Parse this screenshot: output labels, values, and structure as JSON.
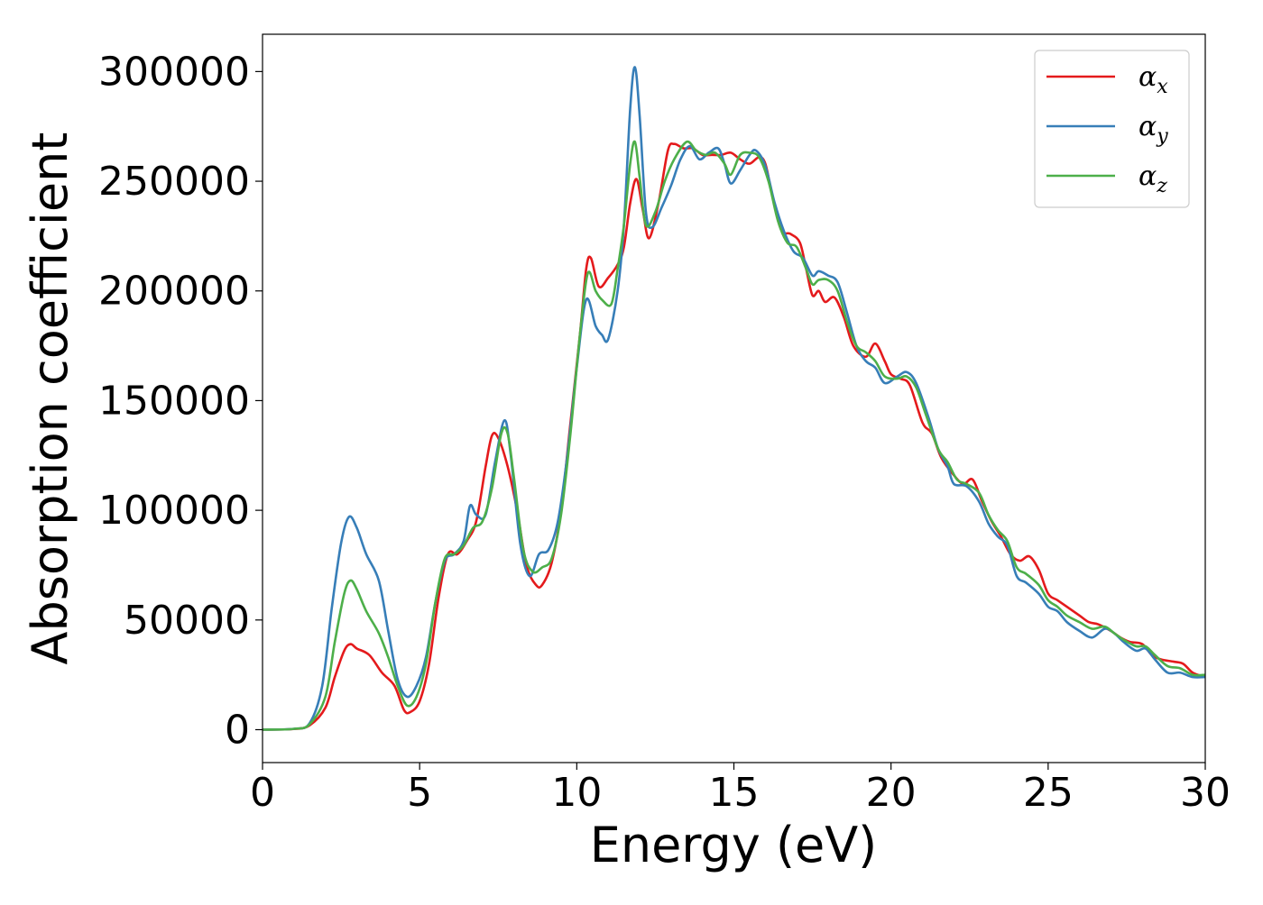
{
  "chart_data": {
    "type": "line",
    "title": "",
    "xlabel": "Energy (eV)",
    "ylabel": "Absorption coefficient",
    "xlim": [
      0,
      30
    ],
    "ylim": [
      -15000,
      317000
    ],
    "xticks": [
      "0",
      "5",
      "10",
      "15",
      "20",
      "25",
      "30"
    ],
    "xtick_values": [
      0,
      5,
      10,
      15,
      20,
      25,
      30
    ],
    "yticks": [
      "0",
      "50000",
      "100000",
      "150000",
      "200000",
      "250000",
      "300000"
    ],
    "ytick_values": [
      0,
      50000,
      100000,
      150000,
      200000,
      250000,
      300000
    ],
    "grid": false,
    "legend_placement": "upper right",
    "series": [
      {
        "name": "α_x",
        "color": "#e41a1c",
        "points": [
          [
            0,
            0
          ],
          [
            1,
            300
          ],
          [
            1.5,
            2000
          ],
          [
            2,
            10000
          ],
          [
            2.3,
            24000
          ],
          [
            2.6,
            36000
          ],
          [
            2.8,
            39000
          ],
          [
            3,
            37000
          ],
          [
            3.4,
            34000
          ],
          [
            3.8,
            26000
          ],
          [
            4.2,
            20000
          ],
          [
            4.5,
            9000
          ],
          [
            4.7,
            8000
          ],
          [
            5,
            13000
          ],
          [
            5.3,
            30000
          ],
          [
            5.6,
            60000
          ],
          [
            5.9,
            80000
          ],
          [
            6.2,
            80000
          ],
          [
            6.5,
            86000
          ],
          [
            6.8,
            95000
          ],
          [
            7.1,
            120000
          ],
          [
            7.3,
            134000
          ],
          [
            7.5,
            133000
          ],
          [
            7.8,
            120000
          ],
          [
            8.1,
            100000
          ],
          [
            8.4,
            75000
          ],
          [
            8.7,
            66000
          ],
          [
            8.9,
            66000
          ],
          [
            9.2,
            76000
          ],
          [
            9.5,
            100000
          ],
          [
            9.8,
            140000
          ],
          [
            10.1,
            180000
          ],
          [
            10.3,
            210000
          ],
          [
            10.45,
            215000
          ],
          [
            10.7,
            202000
          ],
          [
            11,
            206000
          ],
          [
            11.3,
            212000
          ],
          [
            11.5,
            220000
          ],
          [
            11.7,
            240000
          ],
          [
            11.9,
            251000
          ],
          [
            12.1,
            237000
          ],
          [
            12.3,
            224000
          ],
          [
            12.6,
            240000
          ],
          [
            12.9,
            264000
          ],
          [
            13.1,
            267000
          ],
          [
            13.4,
            265000
          ],
          [
            13.7,
            265000
          ],
          [
            14,
            262000
          ],
          [
            14.3,
            262000
          ],
          [
            14.6,
            262000
          ],
          [
            14.9,
            263000
          ],
          [
            15.2,
            260000
          ],
          [
            15.5,
            258000
          ],
          [
            15.8,
            261000
          ],
          [
            16,
            258000
          ],
          [
            16.2,
            245000
          ],
          [
            16.5,
            228000
          ],
          [
            16.8,
            226000
          ],
          [
            17.1,
            222000
          ],
          [
            17.3,
            210000
          ],
          [
            17.5,
            198000
          ],
          [
            17.7,
            200000
          ],
          [
            17.9,
            195000
          ],
          [
            18.2,
            197000
          ],
          [
            18.5,
            188000
          ],
          [
            18.8,
            175000
          ],
          [
            19.2,
            170000
          ],
          [
            19.5,
            176000
          ],
          [
            19.8,
            168000
          ],
          [
            20,
            162000
          ],
          [
            20.3,
            160000
          ],
          [
            20.6,
            157000
          ],
          [
            21,
            140000
          ],
          [
            21.3,
            135000
          ],
          [
            21.6,
            124000
          ],
          [
            22,
            116000
          ],
          [
            22.3,
            112000
          ],
          [
            22.6,
            114000
          ],
          [
            22.9,
            104000
          ],
          [
            23.2,
            95000
          ],
          [
            23.5,
            88000
          ],
          [
            23.8,
            80000
          ],
          [
            24.1,
            77000
          ],
          [
            24.4,
            79000
          ],
          [
            24.7,
            73000
          ],
          [
            25,
            62000
          ],
          [
            25.3,
            59000
          ],
          [
            25.6,
            56000
          ],
          [
            26,
            52000
          ],
          [
            26.3,
            49000
          ],
          [
            26.6,
            48000
          ],
          [
            27,
            45000
          ],
          [
            27.3,
            42000
          ],
          [
            27.6,
            40000
          ],
          [
            28,
            39000
          ],
          [
            28.3,
            34000
          ],
          [
            28.6,
            32000
          ],
          [
            29,
            31000
          ],
          [
            29.3,
            30000
          ],
          [
            29.6,
            26000
          ],
          [
            30,
            24000
          ]
        ]
      },
      {
        "name": "α_y",
        "color": "#377eb8",
        "points": [
          [
            0,
            0
          ],
          [
            1,
            400
          ],
          [
            1.5,
            3000
          ],
          [
            1.9,
            20000
          ],
          [
            2.2,
            55000
          ],
          [
            2.5,
            85000
          ],
          [
            2.75,
            97000
          ],
          [
            3,
            92000
          ],
          [
            3.3,
            80000
          ],
          [
            3.7,
            68000
          ],
          [
            4,
            45000
          ],
          [
            4.3,
            23000
          ],
          [
            4.6,
            15000
          ],
          [
            4.9,
            20000
          ],
          [
            5.2,
            33000
          ],
          [
            5.5,
            58000
          ],
          [
            5.8,
            77000
          ],
          [
            6.1,
            80000
          ],
          [
            6.4,
            86000
          ],
          [
            6.6,
            102000
          ],
          [
            6.8,
            98000
          ],
          [
            7.1,
            98000
          ],
          [
            7.4,
            122000
          ],
          [
            7.7,
            141000
          ],
          [
            7.9,
            125000
          ],
          [
            8.2,
            85000
          ],
          [
            8.5,
            70000
          ],
          [
            8.8,
            80000
          ],
          [
            9.1,
            82000
          ],
          [
            9.4,
            95000
          ],
          [
            9.7,
            125000
          ],
          [
            10,
            165000
          ],
          [
            10.3,
            196000
          ],
          [
            10.6,
            184000
          ],
          [
            10.8,
            180000
          ],
          [
            11,
            178000
          ],
          [
            11.3,
            200000
          ],
          [
            11.5,
            230000
          ],
          [
            11.7,
            283000
          ],
          [
            11.85,
            302000
          ],
          [
            12,
            280000
          ],
          [
            12.2,
            236000
          ],
          [
            12.4,
            229000
          ],
          [
            12.7,
            238000
          ],
          [
            13,
            248000
          ],
          [
            13.3,
            260000
          ],
          [
            13.6,
            266000
          ],
          [
            13.9,
            260000
          ],
          [
            14.2,
            263000
          ],
          [
            14.5,
            265000
          ],
          [
            14.7,
            258000
          ],
          [
            14.9,
            249000
          ],
          [
            15.2,
            255000
          ],
          [
            15.5,
            262000
          ],
          [
            15.7,
            264000
          ],
          [
            16,
            257000
          ],
          [
            16.3,
            240000
          ],
          [
            16.6,
            227000
          ],
          [
            16.9,
            218000
          ],
          [
            17.2,
            215000
          ],
          [
            17.5,
            207000
          ],
          [
            17.7,
            209000
          ],
          [
            18,
            207000
          ],
          [
            18.3,
            204000
          ],
          [
            18.6,
            190000
          ],
          [
            18.9,
            175000
          ],
          [
            19.2,
            168000
          ],
          [
            19.5,
            165000
          ],
          [
            19.8,
            158000
          ],
          [
            20.2,
            161000
          ],
          [
            20.5,
            163000
          ],
          [
            20.8,
            158000
          ],
          [
            21.2,
            142000
          ],
          [
            21.5,
            128000
          ],
          [
            21.8,
            120000
          ],
          [
            22,
            112000
          ],
          [
            22.4,
            111000
          ],
          [
            22.8,
            104000
          ],
          [
            23.1,
            94000
          ],
          [
            23.4,
            88000
          ],
          [
            23.7,
            84000
          ],
          [
            24,
            70000
          ],
          [
            24.3,
            67000
          ],
          [
            24.7,
            62000
          ],
          [
            25,
            56000
          ],
          [
            25.3,
            54000
          ],
          [
            25.6,
            49000
          ],
          [
            26,
            45000
          ],
          [
            26.4,
            42000
          ],
          [
            26.8,
            46000
          ],
          [
            27.1,
            44000
          ],
          [
            27.4,
            40000
          ],
          [
            27.8,
            36000
          ],
          [
            28.1,
            37000
          ],
          [
            28.4,
            32000
          ],
          [
            28.8,
            26000
          ],
          [
            29.2,
            26000
          ],
          [
            29.6,
            24000
          ],
          [
            30,
            24000
          ]
        ]
      },
      {
        "name": "α_z",
        "color": "#4daf4a",
        "points": [
          [
            0,
            0
          ],
          [
            1,
            350
          ],
          [
            1.5,
            2500
          ],
          [
            2,
            15000
          ],
          [
            2.3,
            40000
          ],
          [
            2.6,
            62000
          ],
          [
            2.8,
            68000
          ],
          [
            3,
            64000
          ],
          [
            3.3,
            54000
          ],
          [
            3.7,
            44000
          ],
          [
            4,
            33000
          ],
          [
            4.3,
            20000
          ],
          [
            4.6,
            11000
          ],
          [
            4.9,
            15000
          ],
          [
            5.2,
            30000
          ],
          [
            5.5,
            58000
          ],
          [
            5.8,
            78000
          ],
          [
            6.1,
            80000
          ],
          [
            6.4,
            84000
          ],
          [
            6.7,
            92000
          ],
          [
            7,
            95000
          ],
          [
            7.3,
            110000
          ],
          [
            7.6,
            135000
          ],
          [
            7.8,
            135000
          ],
          [
            8,
            115000
          ],
          [
            8.3,
            82000
          ],
          [
            8.6,
            72000
          ],
          [
            8.9,
            74000
          ],
          [
            9.2,
            78000
          ],
          [
            9.5,
            98000
          ],
          [
            9.8,
            135000
          ],
          [
            10.1,
            180000
          ],
          [
            10.35,
            208000
          ],
          [
            10.6,
            200000
          ],
          [
            10.8,
            196000
          ],
          [
            11.1,
            194000
          ],
          [
            11.3,
            210000
          ],
          [
            11.5,
            230000
          ],
          [
            11.7,
            258000
          ],
          [
            11.85,
            268000
          ],
          [
            12,
            252000
          ],
          [
            12.2,
            230000
          ],
          [
            12.5,
            236000
          ],
          [
            12.8,
            250000
          ],
          [
            13.1,
            260000
          ],
          [
            13.5,
            268000
          ],
          [
            13.8,
            264000
          ],
          [
            14.1,
            262000
          ],
          [
            14.4,
            263000
          ],
          [
            14.7,
            258000
          ],
          [
            14.9,
            253000
          ],
          [
            15.2,
            262000
          ],
          [
            15.5,
            263000
          ],
          [
            15.8,
            261000
          ],
          [
            16.1,
            250000
          ],
          [
            16.4,
            232000
          ],
          [
            16.7,
            222000
          ],
          [
            17,
            220000
          ],
          [
            17.3,
            210000
          ],
          [
            17.5,
            203000
          ],
          [
            17.7,
            205000
          ],
          [
            18,
            205000
          ],
          [
            18.3,
            200000
          ],
          [
            18.6,
            186000
          ],
          [
            18.9,
            175000
          ],
          [
            19.2,
            172000
          ],
          [
            19.5,
            168000
          ],
          [
            19.8,
            161000
          ],
          [
            20.2,
            160000
          ],
          [
            20.5,
            161000
          ],
          [
            20.8,
            156000
          ],
          [
            21.1,
            144000
          ],
          [
            21.5,
            128000
          ],
          [
            21.8,
            122000
          ],
          [
            22.1,
            114000
          ],
          [
            22.4,
            112000
          ],
          [
            22.8,
            108000
          ],
          [
            23.1,
            98000
          ],
          [
            23.4,
            91000
          ],
          [
            23.7,
            86000
          ],
          [
            24,
            74000
          ],
          [
            24.3,
            71000
          ],
          [
            24.7,
            66000
          ],
          [
            25,
            59000
          ],
          [
            25.3,
            56000
          ],
          [
            25.6,
            52000
          ],
          [
            26,
            49000
          ],
          [
            26.4,
            46000
          ],
          [
            26.8,
            47000
          ],
          [
            27.1,
            44000
          ],
          [
            27.4,
            41000
          ],
          [
            27.8,
            38000
          ],
          [
            28.1,
            38000
          ],
          [
            28.4,
            34000
          ],
          [
            28.8,
            29000
          ],
          [
            29.2,
            28000
          ],
          [
            29.6,
            25000
          ],
          [
            30,
            25000
          ]
        ]
      }
    ]
  }
}
